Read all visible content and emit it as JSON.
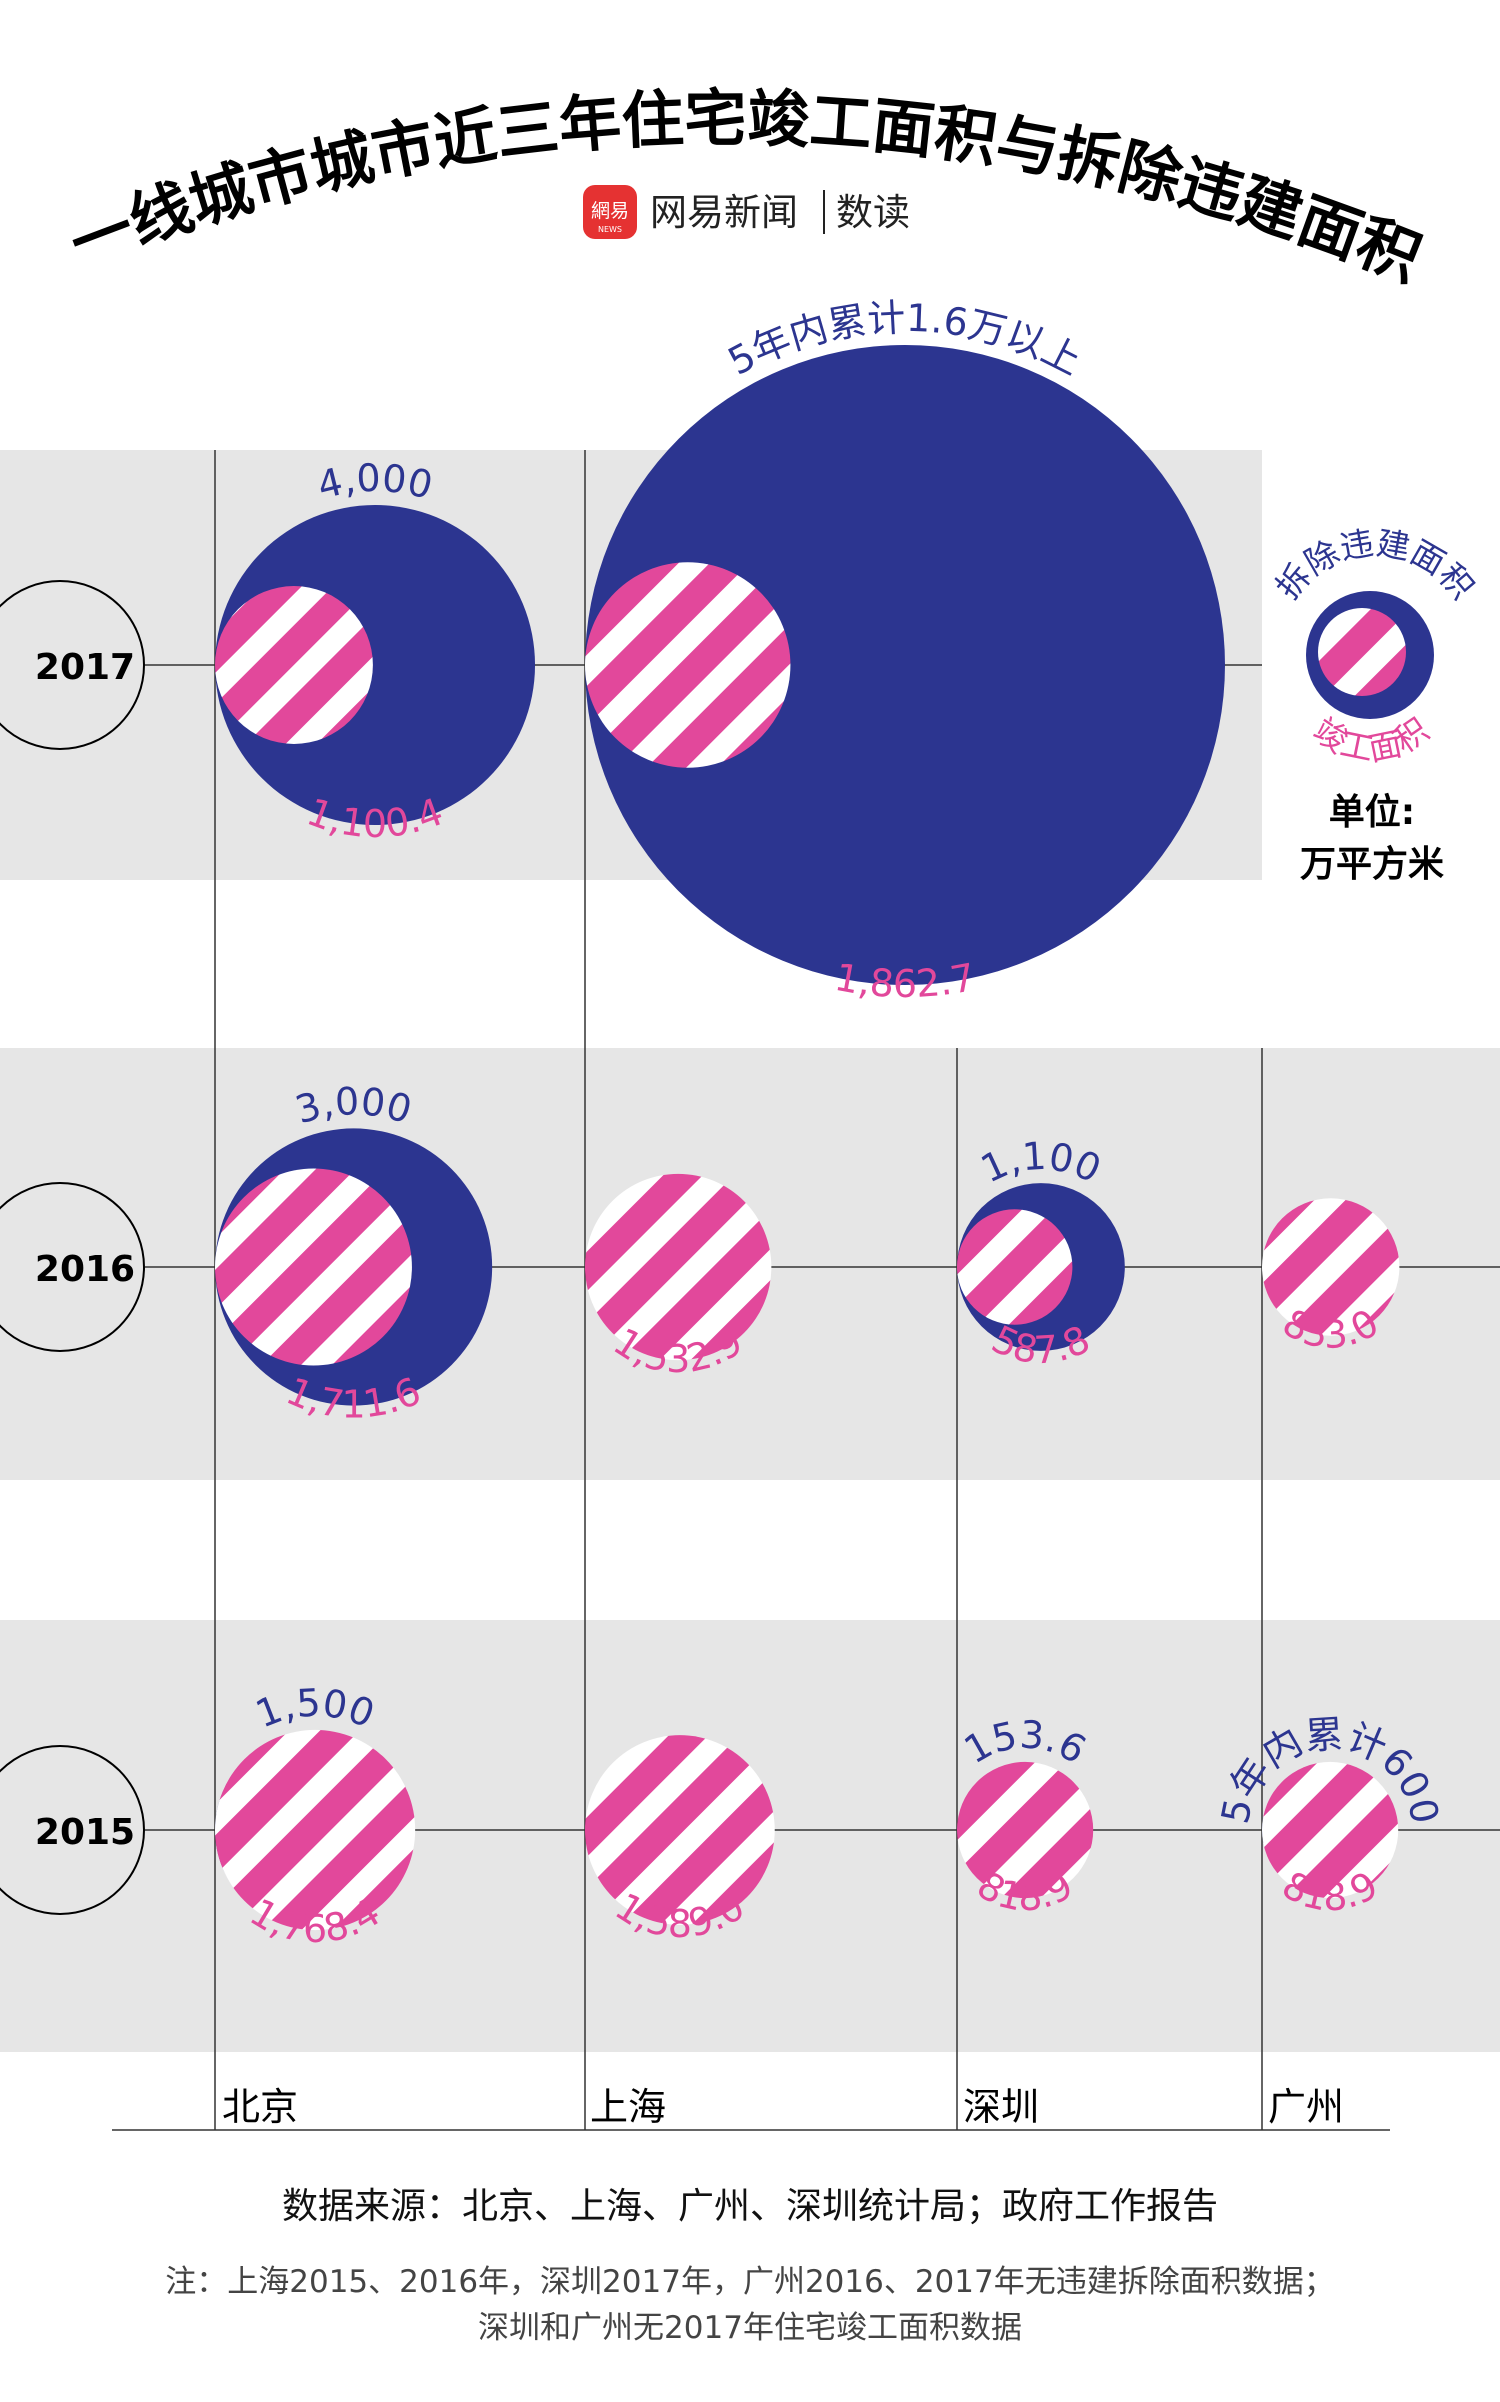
{
  "title": "一线城市城市近三年住宅竣工面积与拆除违建面积",
  "brand": {
    "logo_text": "網易",
    "logo_sub": "NEWS",
    "name": "网易新闻",
    "section": "数读"
  },
  "legend": {
    "demolition_label": "拆除违建面积",
    "completion_label": "竣工面积",
    "unit_label": "单位:",
    "unit_value": "万平方米"
  },
  "colors": {
    "demolition": "#2c3590",
    "completion": "#e2489b",
    "band": "#e6e6e6"
  },
  "cities": [
    "北京",
    "上海",
    "深圳",
    "广州"
  ],
  "years": [
    "2017",
    "2016",
    "2015"
  ],
  "chart_data": {
    "type": "bubble",
    "title": "一线城市城市近三年住宅竣工面积与拆除违建面积",
    "unit": "万平方米",
    "series": [
      {
        "name": "拆除违建面积",
        "color": "#2c3590"
      },
      {
        "name": "竣工面积",
        "color": "#e2489b"
      }
    ],
    "points": [
      {
        "year": "2017",
        "city": "北京",
        "demolition": 4000,
        "demolition_label": "4,000",
        "completion": 1100.4,
        "completion_label": "1,100.4"
      },
      {
        "year": "2017",
        "city": "上海",
        "demolition": 16000,
        "demolition_label": "5年内累计1.6万以上",
        "completion": 1862.7,
        "completion_label": "1,862.7"
      },
      {
        "year": "2016",
        "city": "北京",
        "demolition": 3000,
        "demolition_label": "3,000",
        "completion": 1711.6,
        "completion_label": "1,711.6"
      },
      {
        "year": "2016",
        "city": "上海",
        "demolition": null,
        "demolition_label": "",
        "completion": 1532.9,
        "completion_label": "1,532.9"
      },
      {
        "year": "2016",
        "city": "深圳",
        "demolition": 1100,
        "demolition_label": "1,100",
        "completion": 587.8,
        "completion_label": "587.8"
      },
      {
        "year": "2016",
        "city": "广州",
        "demolition": null,
        "demolition_label": "",
        "completion": 833.0,
        "completion_label": "833.0"
      },
      {
        "year": "2015",
        "city": "北京",
        "demolition": 1500,
        "demolition_label": "1,500",
        "completion": 1768.4,
        "completion_label": "1,768.4"
      },
      {
        "year": "2015",
        "city": "上海",
        "demolition": null,
        "demolition_label": "",
        "completion": 1589.0,
        "completion_label": "1,589.0"
      },
      {
        "year": "2015",
        "city": "深圳",
        "demolition": 153.6,
        "demolition_label": "153.6",
        "completion": 818.9,
        "completion_label": "818.9"
      },
      {
        "year": "2015",
        "city": "广州",
        "demolition": 600,
        "demolition_label": "5年内累计600",
        "completion": 818.9,
        "completion_label": "818.9"
      }
    ]
  },
  "source": "数据来源：北京、上海、广州、深圳统计局；政府工作报告",
  "notes": [
    "注：上海2015、2016年，深圳2017年，广州2016、2017年无违建拆除面积数据；",
    "深圳和广州无2017年住宅竣工面积数据"
  ]
}
